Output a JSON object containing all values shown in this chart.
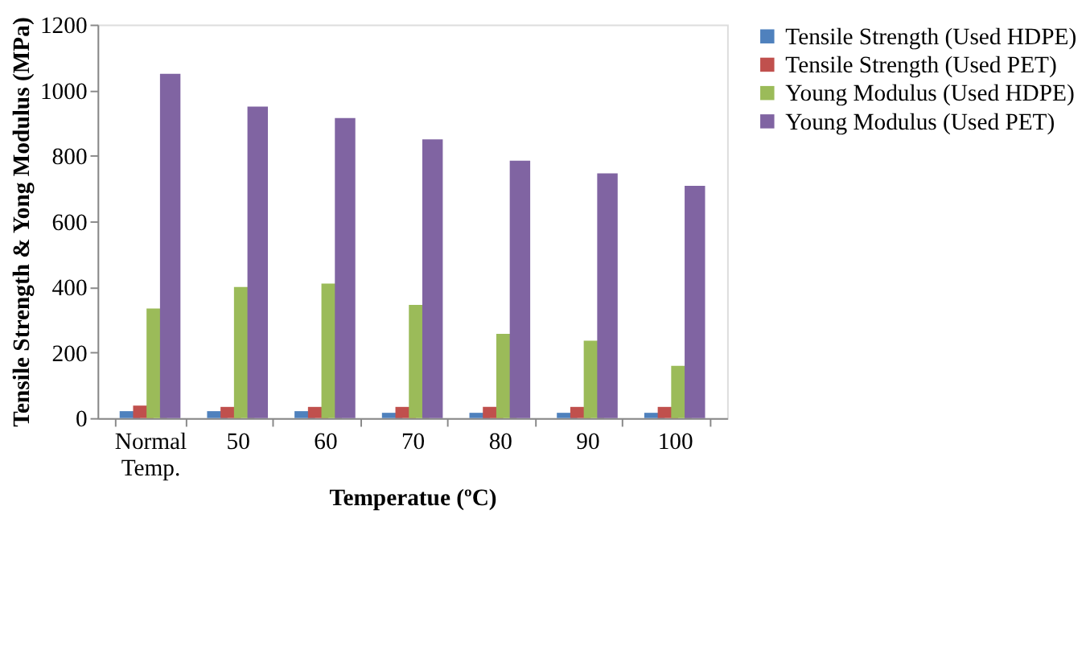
{
  "chart_data": {
    "type": "bar",
    "xlabel": "Temperatue (ºC)",
    "ylabel": "Tensile Strength & Yong Modulus (MPa)",
    "categories": [
      "Normal Temp.",
      "50",
      "60",
      "70",
      "80",
      "90",
      "100"
    ],
    "series": [
      {
        "name": "Tensile Strength (Used HDPE)",
        "color": "#4f81bd",
        "values": [
          21,
          21,
          21,
          16,
          16,
          16,
          16
        ]
      },
      {
        "name": "Tensile Strength (Used PET)",
        "color": "#c0504d",
        "values": [
          38,
          34,
          34,
          34,
          34,
          34,
          34
        ]
      },
      {
        "name": "Young Modulus (Used HDPE)",
        "color": "#9bbb59",
        "values": [
          334,
          400,
          410,
          345,
          257,
          236,
          159
        ]
      },
      {
        "name": "Young Modulus (Used PET)",
        "color": "#8064a2",
        "values": [
          1050,
          950,
          915,
          850,
          785,
          746,
          708
        ]
      }
    ],
    "ylim": [
      0,
      1200
    ],
    "yticks": [
      0,
      200,
      400,
      600,
      800,
      1000,
      1200
    ],
    "grid": false,
    "legend": "right"
  }
}
